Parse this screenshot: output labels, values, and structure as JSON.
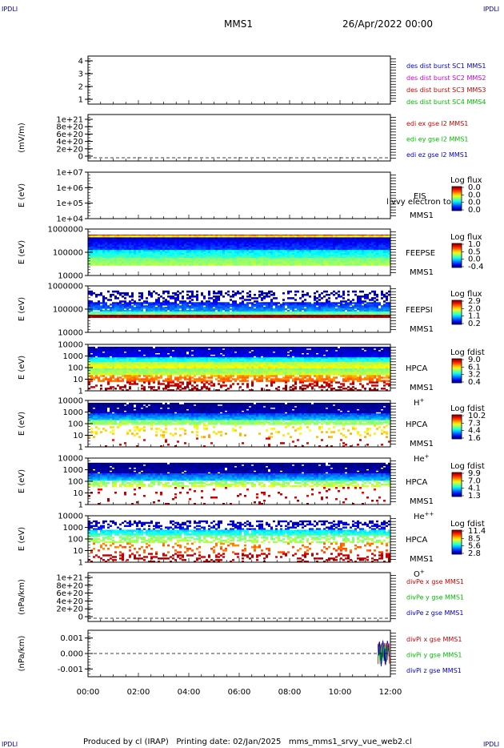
{
  "header": {
    "corner_label": "IPDLI",
    "spacecraft": "MMS1",
    "date": "26/Apr/2022 00:00"
  },
  "footer": {
    "text": "Produced by cl (IRAP)   Printing date: 02/Jan/2025   mms_mms1_srvy_vue_web2.cl"
  },
  "chart_data": {
    "type": "multi-panel time series",
    "x_ticks": [
      "00:00",
      "02:00",
      "04:00",
      "06:00",
      "08:00",
      "10:00",
      "12:00"
    ],
    "x_range_hours": [
      0,
      12
    ],
    "panels": [
      {
        "type": "line",
        "ylabel": "",
        "yticks": [
          "4",
          "3",
          "2",
          "1"
        ],
        "legend": [
          {
            "text": "des dist burst SC1 MMS1",
            "color": "#0000cc"
          },
          {
            "text": "des dist burst SC2 MMS2",
            "color": "#cc00cc"
          },
          {
            "text": "des dist burst SC3 MMS3",
            "color": "#cc0000"
          },
          {
            "text": "des dist burst SC4 MMS4",
            "color": "#00bb00"
          }
        ]
      },
      {
        "type": "line",
        "ylabel": "(mV/m)",
        "yticks": [
          "1e+21",
          "8e+20",
          "6e+20",
          "4e+20",
          "2e+20",
          "0"
        ],
        "zero_line": true,
        "legend": [
          {
            "text": "edi ex gse l2 MMS1",
            "color": "#cc0000"
          },
          {
            "text": "edi ey gse l2 MMS1",
            "color": "#00bb00"
          },
          {
            "text": "edi ez gse l2 MMS1",
            "color": "#0000cc"
          }
        ]
      },
      {
        "type": "heatmap",
        "ylabel": "E (eV)",
        "yticks": [
          "1e+07",
          "1e+06",
          "1e+05",
          "1e+04"
        ],
        "instrument": "EIS",
        "spacecraft": "MMS1",
        "overlay": "l vvy electron to",
        "colorbar_title": "Log flux",
        "colorbar_ticks": [
          "0.0",
          "0.0",
          "0.0",
          "0.0"
        ],
        "fill": "none"
      },
      {
        "type": "heatmap",
        "ylabel": "E (eV)",
        "yticks": [
          "1000000",
          "100000",
          "10000"
        ],
        "instrument": "FEEPSE",
        "spacecraft": "MMS1",
        "colorbar_title": "Log flux",
        "colorbar_ticks": [
          "1.0",
          "0.5",
          "0.0",
          "-0.4"
        ],
        "fill": "feepse"
      },
      {
        "type": "heatmap",
        "ylabel": "E (eV)",
        "yticks": [
          "1000000",
          "100000",
          "10000"
        ],
        "instrument": "FEEPSI",
        "spacecraft": "MMS1",
        "colorbar_title": "Log flux",
        "colorbar_ticks": [
          "2.9",
          "2.0",
          "1.1",
          "0.2"
        ],
        "fill": "feepsi"
      },
      {
        "type": "heatmap",
        "ylabel": "E (eV)",
        "yticks": [
          "10000",
          "1000",
          "100",
          "10",
          "1"
        ],
        "instrument": "HPCA",
        "spacecraft": "MMS1",
        "species": "H",
        "species_charge": "+",
        "colorbar_title": "Log fdist",
        "colorbar_ticks": [
          "9.0",
          "6.1",
          "3.2",
          "0.4"
        ],
        "fill": "hpca_h"
      },
      {
        "type": "heatmap",
        "ylabel": "E (eV)",
        "yticks": [
          "10000",
          "1000",
          "100",
          "10",
          "1"
        ],
        "instrument": "HPCA",
        "spacecraft": "MMS1",
        "species": "He",
        "species_charge": "+",
        "colorbar_title": "Log fdist",
        "colorbar_ticks": [
          "10.2",
          "7.3",
          "4.4",
          "1.6"
        ],
        "fill": "hpca_he"
      },
      {
        "type": "heatmap",
        "ylabel": "E (eV)",
        "yticks": [
          "10000",
          "1000",
          "100",
          "10",
          "1"
        ],
        "instrument": "HPCA",
        "spacecraft": "MMS1",
        "species": "He",
        "species_charge": "++",
        "colorbar_title": "Log fdist",
        "colorbar_ticks": [
          "9.9",
          "7.0",
          "4.1",
          "1.3"
        ],
        "fill": "hpca_hepp"
      },
      {
        "type": "heatmap",
        "ylabel": "E (eV)",
        "yticks": [
          "10000",
          "1000",
          "100",
          "10",
          "1"
        ],
        "instrument": "HPCA",
        "spacecraft": "MMS1",
        "species": "O",
        "species_charge": "+",
        "colorbar_title": "Log fdist",
        "colorbar_ticks": [
          "11.4",
          "8.5",
          "5.6",
          "2.8"
        ],
        "fill": "hpca_o"
      },
      {
        "type": "line",
        "ylabel": "(nPa/km)",
        "yticks": [
          "1e+21",
          "8e+20",
          "6e+20",
          "4e+20",
          "2e+20",
          "0"
        ],
        "zero_line": true,
        "legend": [
          {
            "text": "divPe x gse MMS1",
            "color": "#cc0000"
          },
          {
            "text": "divPe y gse MMS1",
            "color": "#00bb00"
          },
          {
            "text": "divPe z gse MMS1",
            "color": "#0000cc"
          }
        ]
      },
      {
        "type": "line",
        "ylabel": "(nPa/km)",
        "yticks": [
          "0.001",
          "0.000",
          "-0.001"
        ],
        "zero_line": true,
        "ylim": [
          -0.0015,
          0.0015
        ],
        "burst_start_hours": 11.5,
        "legend": [
          {
            "text": "divPi x gse MMS1",
            "color": "#cc0000"
          },
          {
            "text": "divPi y gse MMS1",
            "color": "#00bb00"
          },
          {
            "text": "divPi z gse MMS1",
            "color": "#0000cc"
          }
        ]
      }
    ]
  }
}
